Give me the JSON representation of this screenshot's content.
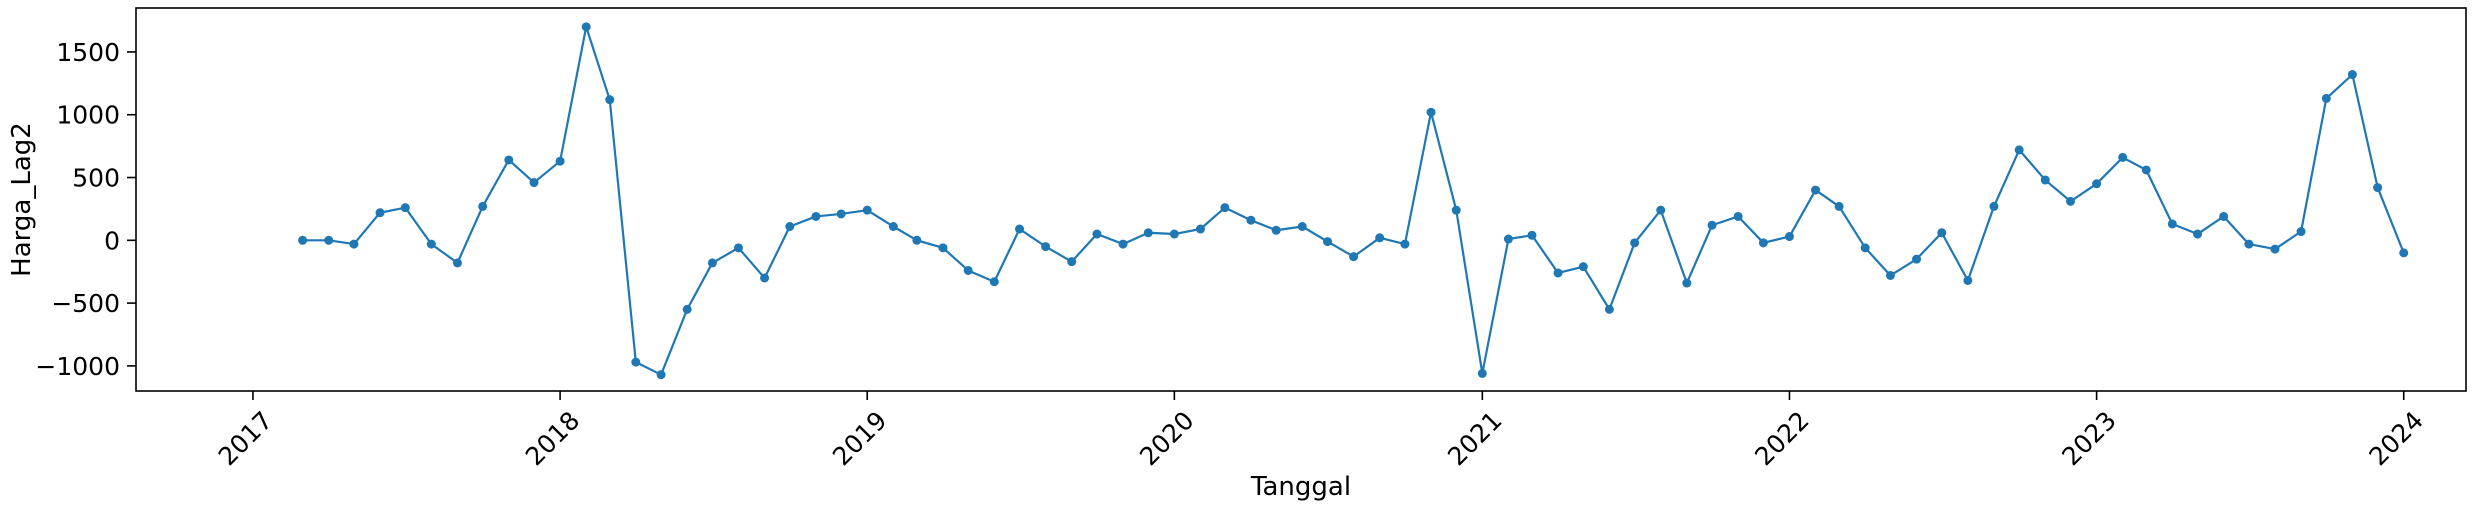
{
  "chart_data": {
    "type": "line",
    "title": "",
    "xlabel": "Tanggal",
    "ylabel": "Harga_Lag2",
    "x_ticks": [
      "2017",
      "2018",
      "2019",
      "2020",
      "2021",
      "2022",
      "2023",
      "2024"
    ],
    "y_ticks": [
      "−1000",
      "−500",
      "0",
      "500",
      "1000",
      "1500"
    ],
    "xlim": [
      "2016-08-15",
      "2024-03-15"
    ],
    "ylim": [
      -1200,
      1850
    ],
    "grid": false,
    "series": [
      {
        "color": "#1f77b4",
        "marker": "circle",
        "points": [
          [
            "2017-03-01",
            0
          ],
          [
            "2017-04-01",
            0
          ],
          [
            "2017-05-01",
            -30
          ],
          [
            "2017-06-01",
            220
          ],
          [
            "2017-07-01",
            260
          ],
          [
            "2017-08-01",
            -30
          ],
          [
            "2017-09-01",
            -180
          ],
          [
            "2017-10-01",
            270
          ],
          [
            "2017-11-01",
            640
          ],
          [
            "2017-12-01",
            460
          ],
          [
            "2018-01-01",
            630
          ],
          [
            "2018-02-01",
            1700
          ],
          [
            "2018-03-01",
            1120
          ],
          [
            "2018-04-01",
            -970
          ],
          [
            "2018-05-01",
            -1070
          ],
          [
            "2018-06-01",
            -550
          ],
          [
            "2018-07-01",
            -180
          ],
          [
            "2018-08-01",
            -60
          ],
          [
            "2018-09-01",
            -300
          ],
          [
            "2018-10-01",
            110
          ],
          [
            "2018-11-01",
            190
          ],
          [
            "2018-12-01",
            210
          ],
          [
            "2019-01-01",
            240
          ],
          [
            "2019-02-01",
            110
          ],
          [
            "2019-03-01",
            0
          ],
          [
            "2019-04-01",
            -60
          ],
          [
            "2019-05-01",
            -240
          ],
          [
            "2019-06-01",
            -330
          ],
          [
            "2019-07-01",
            90
          ],
          [
            "2019-08-01",
            -50
          ],
          [
            "2019-09-01",
            -170
          ],
          [
            "2019-10-01",
            50
          ],
          [
            "2019-11-01",
            -30
          ],
          [
            "2019-12-01",
            60
          ],
          [
            "2020-01-01",
            50
          ],
          [
            "2020-02-01",
            90
          ],
          [
            "2020-03-01",
            260
          ],
          [
            "2020-04-01",
            160
          ],
          [
            "2020-05-01",
            80
          ],
          [
            "2020-06-01",
            110
          ],
          [
            "2020-07-01",
            -10
          ],
          [
            "2020-08-01",
            -130
          ],
          [
            "2020-09-01",
            20
          ],
          [
            "2020-10-01",
            -30
          ],
          [
            "2020-11-01",
            1020
          ],
          [
            "2020-12-01",
            240
          ],
          [
            "2021-01-01",
            -1060
          ],
          [
            "2021-02-01",
            10
          ],
          [
            "2021-03-01",
            40
          ],
          [
            "2021-04-01",
            -260
          ],
          [
            "2021-05-01",
            -210
          ],
          [
            "2021-06-01",
            -550
          ],
          [
            "2021-07-01",
            -20
          ],
          [
            "2021-08-01",
            240
          ],
          [
            "2021-09-01",
            -340
          ],
          [
            "2021-10-01",
            120
          ],
          [
            "2021-11-01",
            190
          ],
          [
            "2021-12-01",
            -20
          ],
          [
            "2022-01-01",
            30
          ],
          [
            "2022-02-01",
            400
          ],
          [
            "2022-03-01",
            270
          ],
          [
            "2022-04-01",
            -60
          ],
          [
            "2022-05-01",
            -280
          ],
          [
            "2022-06-01",
            -150
          ],
          [
            "2022-07-01",
            60
          ],
          [
            "2022-08-01",
            -320
          ],
          [
            "2022-09-01",
            270
          ],
          [
            "2022-10-01",
            720
          ],
          [
            "2022-11-01",
            480
          ],
          [
            "2022-12-01",
            310
          ],
          [
            "2023-01-01",
            450
          ],
          [
            "2023-02-01",
            660
          ],
          [
            "2023-03-01",
            560
          ],
          [
            "2023-04-01",
            130
          ],
          [
            "2023-05-01",
            50
          ],
          [
            "2023-06-01",
            190
          ],
          [
            "2023-07-01",
            -30
          ],
          [
            "2023-08-01",
            -70
          ],
          [
            "2023-09-01",
            70
          ],
          [
            "2023-10-01",
            1130
          ],
          [
            "2023-11-01",
            1320
          ],
          [
            "2023-12-01",
            420
          ],
          [
            "2024-01-01",
            -100
          ]
        ]
      }
    ]
  }
}
